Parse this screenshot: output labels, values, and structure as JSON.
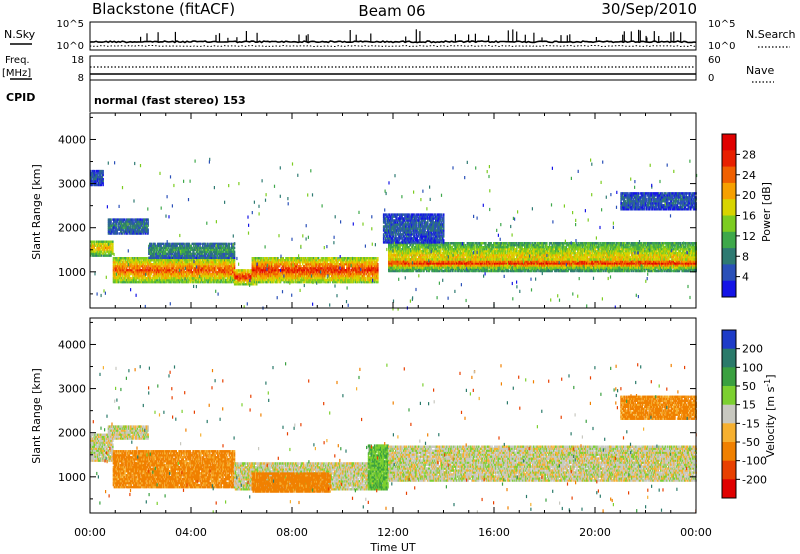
{
  "header": {
    "station": "Blackstone (fitACF)",
    "beam": "Beam 06",
    "date": "30/Sep/2010"
  },
  "noise_panel": {
    "left_label": "N.Sky",
    "right_label": "N.Search",
    "left_ticks": [
      "10^5",
      "10^0"
    ],
    "right_ticks": [
      "10^5",
      "10^0"
    ]
  },
  "freq_panel": {
    "left_label_top": "Freq.",
    "left_label_unit": "[MHz]",
    "right_label": "Nave",
    "left_ticks": [
      "18",
      "8"
    ],
    "right_ticks": [
      "60",
      "0"
    ]
  },
  "cpid": {
    "label": "CPID",
    "value": "normal (fast stereo) 153"
  },
  "colors": {
    "frame": "#000000",
    "background": "#ffffff",
    "ground_scatter": "#c0c0b8"
  },
  "chart_data": [
    {
      "type": "heatmap",
      "name_label": "Power",
      "xlabel": "Time UT",
      "ylabel": "Slant Range [km]",
      "x_ticks": [
        "00:00",
        "04:00",
        "08:00",
        "12:00",
        "16:00",
        "20:00",
        "00:00"
      ],
      "x_range_hours": [
        0,
        24
      ],
      "y_ticks": [
        1000,
        2000,
        3000,
        4000
      ],
      "ylim": [
        180,
        4600
      ],
      "colorbar": {
        "label": "Power [dB]",
        "ticks": [
          4,
          8,
          12,
          16,
          20,
          24,
          28
        ],
        "range": [
          0,
          32
        ],
        "colors": [
          "#1414e6",
          "#2a50b8",
          "#2e7a72",
          "#3ea84a",
          "#7ccc20",
          "#d8d400",
          "#f6a000",
          "#f06000",
          "#e82000",
          "#e00000"
        ]
      },
      "bands": [
        {
          "t": [
            0.0,
            0.9
          ],
          "range": [
            1350,
            1700
          ],
          "power": 20
        },
        {
          "t": [
            0.7,
            2.3
          ],
          "range": [
            1850,
            2200
          ],
          "power": 8
        },
        {
          "t": [
            0.9,
            5.7
          ],
          "range": [
            750,
            1300
          ],
          "power": 24
        },
        {
          "t": [
            2.3,
            5.7
          ],
          "range": [
            1300,
            1650
          ],
          "power": 10
        },
        {
          "t": [
            5.7,
            6.6
          ],
          "range": [
            700,
            1050
          ],
          "power": 26
        },
        {
          "t": [
            6.4,
            11.4
          ],
          "range": [
            750,
            1300
          ],
          "power": 26
        },
        {
          "t": [
            11.8,
            24.0
          ],
          "range": [
            1000,
            1650
          ],
          "power": 18
        },
        {
          "t": [
            11.8,
            24.0
          ],
          "range": [
            1080,
            1280
          ],
          "power": 27
        },
        {
          "t": [
            11.6,
            14.0
          ],
          "range": [
            1650,
            2300
          ],
          "power": 6
        },
        {
          "t": [
            21.0,
            24.0
          ],
          "range": [
            2400,
            2800
          ],
          "power": 6
        },
        {
          "t": [
            0.0,
            0.5
          ],
          "range": [
            2950,
            3300
          ],
          "power": 6
        }
      ]
    },
    {
      "type": "heatmap",
      "name_label": "Velocity",
      "xlabel": "Time UT",
      "ylabel": "Slant Range [km]",
      "x_ticks": [
        "00:00",
        "04:00",
        "08:00",
        "12:00",
        "16:00",
        "20:00",
        "00:00"
      ],
      "x_range_hours": [
        0,
        24
      ],
      "y_ticks": [
        1000,
        2000,
        3000,
        4000
      ],
      "ylim": [
        180,
        4600
      ],
      "colorbar": {
        "label": "Velocity [m s^-1]",
        "ticks": [
          "200",
          "100",
          "50",
          "15",
          "-15",
          "-50",
          "-100",
          "-200"
        ],
        "colors": [
          "#1e3cc8",
          "#2a7a6a",
          "#3aa040",
          "#7cd030",
          "#c8c8c0",
          "#f6b030",
          "#f08000",
          "#e84000",
          "#e00000"
        ]
      },
      "bands": [
        {
          "t": [
            0.0,
            0.9
          ],
          "range": [
            1350,
            1950
          ],
          "velocity": 0
        },
        {
          "t": [
            0.7,
            2.3
          ],
          "range": [
            1850,
            2150
          ],
          "velocity": 0
        },
        {
          "t": [
            0.9,
            5.7
          ],
          "range": [
            750,
            1600
          ],
          "velocity": -40
        },
        {
          "t": [
            5.7,
            11.5
          ],
          "range": [
            700,
            1300
          ],
          "velocity": 0
        },
        {
          "t": [
            6.4,
            9.5
          ],
          "range": [
            650,
            1100
          ],
          "velocity": -45
        },
        {
          "t": [
            11.0,
            11.8
          ],
          "range": [
            700,
            1700
          ],
          "velocity": 30
        },
        {
          "t": [
            11.8,
            24.0
          ],
          "range": [
            900,
            1700
          ],
          "velocity": 0
        },
        {
          "t": [
            21.0,
            24.0
          ],
          "range": [
            2300,
            2800
          ],
          "velocity": -40
        }
      ]
    }
  ]
}
